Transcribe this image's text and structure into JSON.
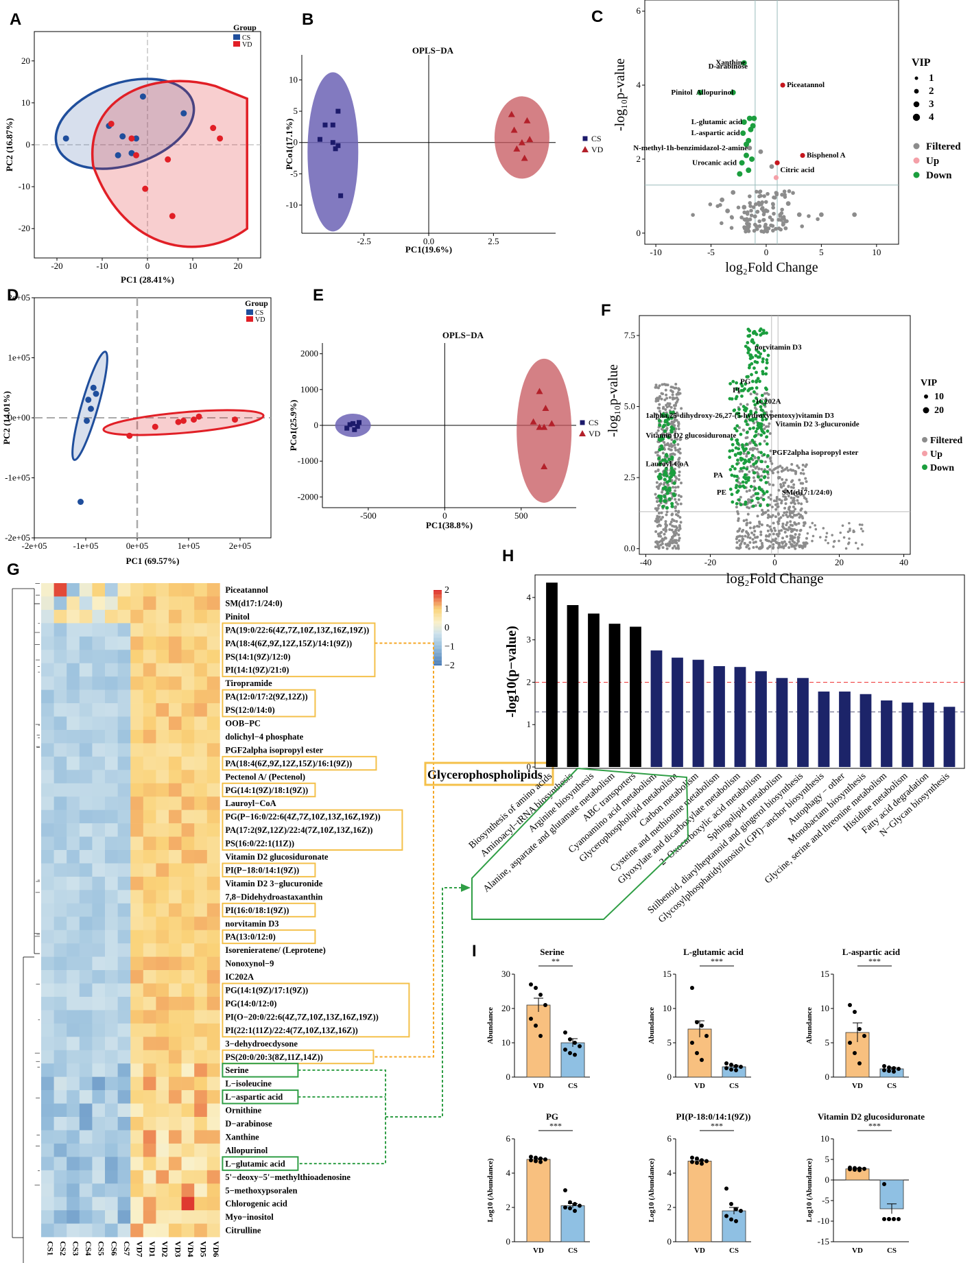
{
  "panels": {
    "A": "A",
    "B": "B",
    "C": "C",
    "D": "D",
    "E": "E",
    "F": "F",
    "G": "G",
    "H": "H",
    "I": "I"
  },
  "colors": {
    "cs": "#1f4e9c",
    "vd": "#e11f26",
    "cs_fill": "rgba(31,78,156,0.18)",
    "vd_fill": "rgba(225,31,38,0.22)",
    "opls_cs": "#6c63b5",
    "opls_vd": "#c5565c",
    "volcano_grey": "#8c8c8c",
    "volcano_green": "#1b9e3e",
    "volcano_up": "#f4a0a8",
    "volcano_red": "#c5161d",
    "bar_black": "#000000",
    "bar_navy": "#1c2469",
    "bar_orange": "#f8c07f",
    "bar_blue": "#8fc0e3",
    "gold_box": "#f4c04a",
    "green_box": "#2f9e45"
  },
  "chart_data": [
    {
      "id": "A",
      "type": "scatter",
      "xlabel": "PC1 (28.41%)",
      "ylabel": "PC2 (16.87%)",
      "xlim": [
        -25,
        25
      ],
      "ylim": [
        -27,
        27
      ],
      "xticks": [
        "-20",
        "-10",
        "0",
        "10",
        "20"
      ],
      "yticks": [
        "-20",
        "-10",
        "0",
        "10",
        "20"
      ],
      "legend": {
        "title": "Group",
        "items": [
          "CS",
          "VD"
        ],
        "placement": "top-right"
      },
      "series": [
        {
          "name": "CS",
          "points": [
            [
              -18,
              1.5
            ],
            [
              -8.5,
              4.5
            ],
            [
              -6.5,
              -2.5
            ],
            [
              -2.5,
              1.5
            ],
            [
              -1,
              11.5
            ],
            [
              -3.5,
              -2
            ],
            [
              -5.5,
              2
            ],
            [
              8,
              7.5
            ]
          ]
        },
        {
          "name": "VD",
          "points": [
            [
              -3.5,
              1.5
            ],
            [
              -8,
              5
            ],
            [
              -2.5,
              -2.5
            ],
            [
              -0.5,
              -10.5
            ],
            [
              4.5,
              -3.5
            ],
            [
              14.5,
              4
            ],
            [
              16,
              1.5
            ],
            [
              5.5,
              -17
            ]
          ]
        }
      ]
    },
    {
      "id": "B",
      "type": "scatter",
      "title": "OPLS−DA",
      "xlabel": "PC1(19.6%)",
      "ylabel": "PCo1(17.1%)",
      "xlim": [
        -4.9,
        4.9
      ],
      "ylim": [
        -14.5,
        14
      ],
      "xticks": [
        "-2.5",
        "0.0",
        "2.5"
      ],
      "yticks": [
        "10",
        "5",
        "0",
        "-5",
        "-10"
      ],
      "legend": {
        "items": [
          "CS",
          "VD"
        ],
        "placement": "right"
      },
      "series": [
        {
          "name": "CS",
          "points": [
            [
              -3.5,
              5
            ],
            [
              -3.7,
              2.8
            ],
            [
              -4,
              2.8
            ],
            [
              -4.2,
              0.5
            ],
            [
              -3.7,
              0
            ],
            [
              -3.5,
              -0.5
            ],
            [
              -3.6,
              -1
            ],
            [
              -3.4,
              -8.5
            ]
          ]
        },
        {
          "name": "VD",
          "points": [
            [
              3.2,
              4.5
            ],
            [
              3.8,
              3.5
            ],
            [
              3.3,
              2
            ],
            [
              3.6,
              0
            ],
            [
              3.9,
              0.5
            ],
            [
              3.4,
              -1
            ],
            [
              3.7,
              -2.5
            ]
          ]
        }
      ]
    },
    {
      "id": "C",
      "type": "scatter",
      "xlabel": "log₂Fold Change",
      "ylabel": "-log₁₀p-value",
      "xlim": [
        -11,
        12
      ],
      "ylim": [
        -0.3,
        6.3
      ],
      "xticks": [
        "-10",
        "-5",
        "0",
        "5",
        "10"
      ],
      "yticks": [
        "0",
        "2",
        "4",
        "6"
      ],
      "legend": {
        "title": "VIP",
        "sizes": [
          "1",
          "2",
          "3",
          "4"
        ],
        "items": [
          "Filtered",
          "Up",
          "Down"
        ],
        "placement": "right"
      },
      "labels": [
        {
          "text": "Xanthine",
          "x": -1.5,
          "y": 4.6,
          "color": "down"
        },
        {
          "text": "D-arabinose",
          "x": -1.3,
          "y": 4.5,
          "color": "down"
        },
        {
          "text": "Pinitol",
          "x": -6.3,
          "y": 3.8,
          "color": "down"
        },
        {
          "text": "Allopurinol",
          "x": -2.6,
          "y": 3.8,
          "color": "down"
        },
        {
          "text": "Piceatannol",
          "x": 1.5,
          "y": 4.0,
          "color": "red"
        },
        {
          "text": "L-glutamic acid",
          "x": -1.8,
          "y": 3.0,
          "color": "down"
        },
        {
          "text": "L-aspartic acid",
          "x": -2.0,
          "y": 2.7,
          "color": "down"
        },
        {
          "text": "N-methyl-1h-benzimidazol-2-amine",
          "x": -1.3,
          "y": 2.3,
          "color": "down"
        },
        {
          "text": "Bisphenol A",
          "x": 3.3,
          "y": 2.1,
          "color": "red"
        },
        {
          "text": "Urocanic acid",
          "x": -2.3,
          "y": 1.9,
          "color": "down"
        },
        {
          "text": "Citric acid",
          "x": 0.9,
          "y": 1.7,
          "color": "red"
        }
      ],
      "hlines": [
        1.3
      ],
      "vlines": [
        -1,
        1
      ]
    },
    {
      "id": "D",
      "type": "scatter",
      "xlabel": "PC1 (69.57%)",
      "ylabel": "PC2 (14.01%)",
      "xlim": [
        -200000,
        260000
      ],
      "ylim": [
        -200000,
        200000
      ],
      "xticks": [
        "-2e+05",
        "-1e+05",
        "0e+05",
        "1e+05",
        "2e+05"
      ],
      "yticks": [
        "2e+05",
        "1e+05",
        "0e+00",
        "-1e+05",
        "-2e+05"
      ],
      "legend": {
        "title": "Group",
        "items": [
          "CS",
          "VD"
        ],
        "placement": "top-right"
      },
      "series": [
        {
          "name": "CS",
          "points": [
            [
              -85000,
              50000
            ],
            [
              -80000,
              40000
            ],
            [
              -95000,
              30000
            ],
            [
              -90000,
              15000
            ],
            [
              -98000,
              -5000
            ],
            [
              -110000,
              -140000
            ]
          ]
        },
        {
          "name": "VD",
          "points": [
            [
              -15000,
              -30000
            ],
            [
              35000,
              -15000
            ],
            [
              80000,
              -7000
            ],
            [
              90000,
              -5000
            ],
            [
              110000,
              -3000
            ],
            [
              120000,
              2000
            ],
            [
              190000,
              -3000
            ]
          ]
        }
      ]
    },
    {
      "id": "E",
      "type": "scatter",
      "title": "OPLS−DA",
      "xlabel": "PC1(38.8%)",
      "ylabel": "PCo1(25.9%)",
      "xlim": [
        -800,
        860
      ],
      "ylim": [
        -2300,
        2300
      ],
      "xticks": [
        "-500",
        "0",
        "500"
      ],
      "yticks": [
        "2000",
        "1000",
        "0",
        "-1000",
        "-2000"
      ],
      "legend": {
        "items": [
          "CS",
          "VD"
        ],
        "placement": "right"
      },
      "series": [
        {
          "name": "CS",
          "points": [
            [
              -600,
              50
            ],
            [
              -560,
              80
            ],
            [
              -640,
              -80
            ],
            [
              -590,
              -120
            ],
            [
              -620,
              20
            ],
            [
              -570,
              -30
            ]
          ]
        },
        {
          "name": "VD",
          "points": [
            [
              620,
              950
            ],
            [
              660,
              480
            ],
            [
              580,
              100
            ],
            [
              650,
              -50
            ],
            [
              700,
              50
            ],
            [
              620,
              -50
            ],
            [
              650,
              -1150
            ]
          ]
        }
      ]
    },
    {
      "id": "F",
      "type": "scatter",
      "xlabel": "log₂Fold Change",
      "ylabel": "-log₁₀p-value",
      "xlim": [
        -42,
        42
      ],
      "ylim": [
        -0.2,
        8.2
      ],
      "xticks": [
        "-40",
        "-20",
        "0",
        "20",
        "40"
      ],
      "yticks": [
        "0.0",
        "2.5",
        "5.0",
        "7.5"
      ],
      "legend": {
        "title": "VIP",
        "sizes": [
          "10",
          "20"
        ],
        "items": [
          "Filtered",
          "Up",
          "Down"
        ],
        "placement": "right"
      },
      "labels": [
        "norvitamin D3",
        "PG",
        "PI",
        "IC202A",
        "1alpha,25-dihydroxy-26,27-(5-hydroxypentoxy)vitamin D3",
        "Vitamin D2 3-glucuronide",
        "Vitamin D2 glucosiduronate",
        "PGF2alpha isopropyl ester",
        "Lauroyl-CoA",
        "PA",
        "PE",
        "SM(d17:1/24:0)"
      ],
      "hlines": [
        1.3
      ],
      "vlines": [
        -1,
        1
      ]
    },
    {
      "id": "G",
      "type": "heatmap",
      "columns": [
        "CS1",
        "CS2",
        "CS3",
        "CS4",
        "CS5",
        "CS6",
        "CS7",
        "VD7",
        "VD1",
        "VD2",
        "VD3",
        "VD4",
        "VD5",
        "VD6"
      ],
      "scale": {
        "max": "2",
        "mid_hi": "1",
        "mid": "0",
        "mid_lo": "−1",
        "min": "−2"
      },
      "rows": [
        "Piceatannol",
        "SM(d17:1/24:0)",
        "Pinitol",
        "PA(19:0/22:6(4Z,7Z,10Z,13Z,16Z,19Z))",
        "PA(18:4(6Z,9Z,12Z,15Z)/14:1(9Z))",
        "PS(14:1(9Z)/12:0)",
        "PI(14:1(9Z)/21:0)",
        "Tiropramide",
        "PA(12:0/17:2(9Z,12Z))",
        "PS(12:0/14:0)",
        "OOB−PC",
        "dolichyl−4 phosphate",
        "PGF2alpha isopropyl ester",
        "PA(18:4(6Z,9Z,12Z,15Z)/16:1(9Z))",
        "Pectenol A/ (Pectenol)",
        "PG(14:1(9Z)/18:1(9Z))",
        "Lauroyl−CoA",
        "PG(P−16:0/22:6(4Z,7Z,10Z,13Z,16Z,19Z))",
        "PA(17:2(9Z,12Z)/22:4(7Z,10Z,13Z,16Z))",
        "PS(16:0/22:1(11Z))",
        "Vitamin D2 glucosiduronate",
        "PI(P−18:0/14:1(9Z))",
        "Vitamin D2 3−glucuronide",
        "7,8−Didehydroastaxanthin",
        "PI(16:0/18:1(9Z))",
        "norvitamin D3",
        "PA(13:0/12:0)",
        "Isorenieratene/ (Leprotene)",
        "Nonoxynol−9",
        "IC202A",
        "PG(14:1(9Z)/17:1(9Z))",
        "PG(14:0/12:0)",
        "PI(O−20:0/22:6(4Z,7Z,10Z,13Z,16Z,19Z))",
        "PI(22:1(11Z)/22:4(7Z,10Z,13Z,16Z))",
        "3−dehydroecdysone",
        "PS(20:0/20:3(8Z,11Z,14Z))",
        "Serine",
        "L−isoleucine",
        "L−aspartic acid",
        "Ornithine",
        "D−arabinose",
        "Xanthine",
        "Allopurinol",
        "L−glutamic acid",
        "5'−deoxy−5'−methylthioadenosine",
        "5−methoxypsoralen",
        "Chlorogenic acid",
        "Myo−inositol",
        "Citrulline"
      ],
      "annotations": {
        "gold": "Glycerophospholipids"
      }
    },
    {
      "id": "H",
      "type": "bar",
      "ylabel": "-log10(p−value)",
      "ylim": [
        0,
        4.5
      ],
      "yticks": [
        "0",
        "1",
        "2",
        "3",
        "4"
      ],
      "hlines": [
        2.0,
        1.3
      ],
      "categories": [
        "Biosynthesis of amino acids",
        "Aminoacyl−tRNA biosynthesis",
        "Arginine biosynthesis",
        "Alanine, aspartate and glutamate metabolism",
        "ABC transporters",
        "Cyanoamino acid metabolism",
        "Glycerophospholipid metabolism",
        "Carbon metabolism",
        "Cysteine and methionine metabolism",
        "Glyoxylate and dicarboxylate metabolism",
        "2−Oxocarboxylic acid metabolism",
        "Sphingolipid metabolism",
        "Stilbenoid, diarylheptanoid and gingerol biosynthesis",
        "Glycosylphosphatidylinositol (GPI)−anchor biosynthesis",
        "Autophagy − other",
        "Monobactam biosynthesis",
        "Glycine, serine and threonine metabolism",
        "Histidine metabolism",
        "Fatty acid degradation",
        "N−Glycan biosynthesis"
      ],
      "values": [
        4.35,
        3.82,
        3.62,
        3.38,
        3.31,
        2.75,
        2.58,
        2.53,
        2.38,
        2.36,
        2.26,
        2.1,
        2.1,
        1.78,
        1.78,
        1.72,
        1.57,
        1.52,
        1.52,
        1.42
      ]
    },
    {
      "id": "I",
      "type": "bar",
      "subplots": [
        {
          "title": "Serine",
          "ylabel": "Abundance",
          "yticks": [
            "0",
            "10",
            "20",
            "30"
          ],
          "ylim": [
            0,
            30
          ],
          "categories": [
            "VD",
            "CS"
          ],
          "values": [
            21,
            10
          ],
          "errors": [
            2,
            1.2
          ],
          "sig": "**",
          "points": [
            [
              27,
              26,
              24,
              21,
              17,
              15,
              12
            ],
            [
              13,
              11,
              10,
              9,
              8,
              7,
              6.5
            ]
          ]
        },
        {
          "title": "L-glutamic acid",
          "ylabel": "Abundance",
          "yticks": [
            "0",
            "5",
            "10",
            "15"
          ],
          "ylim": [
            0,
            15
          ],
          "categories": [
            "VD",
            "CS"
          ],
          "values": [
            7,
            1.5
          ],
          "errors": [
            1.2,
            0.2
          ],
          "sig": "***",
          "points": [
            [
              13,
              8,
              7.5,
              6,
              5,
              3.5,
              2.5
            ],
            [
              2,
              1.8,
              1.6,
              1.5,
              1.3,
              1.1,
              1
            ]
          ]
        },
        {
          "title": "L-aspartic acid",
          "ylabel": "Abundance",
          "yticks": [
            "0",
            "5",
            "10",
            "15"
          ],
          "ylim": [
            0,
            15
          ],
          "categories": [
            "VD",
            "CS"
          ],
          "values": [
            6.5,
            1.2
          ],
          "errors": [
            1.4,
            0.2
          ],
          "sig": "***",
          "points": [
            [
              10.5,
              9.5,
              7,
              6,
              5,
              3.5,
              2
            ],
            [
              1.6,
              1.4,
              1.3,
              1.2,
              1,
              0.9,
              0.8
            ]
          ]
        },
        {
          "title": "PG",
          "ylabel": "Log10 (Abundance)",
          "yticks": [
            "0",
            "2",
            "4",
            "6"
          ],
          "ylim": [
            0,
            6
          ],
          "categories": [
            "VD",
            "CS"
          ],
          "values": [
            4.8,
            2.1
          ],
          "errors": [
            0.05,
            0.12
          ],
          "sig": "***",
          "points": [
            [
              4.95,
              4.9,
              4.85,
              4.8,
              4.75,
              4.7,
              4.65
            ],
            [
              3,
              2.3,
              2.2,
              2.1,
              2,
              1.95,
              1.8
            ]
          ]
        },
        {
          "title": "PI(P-18:0/14:1(9Z))",
          "ylabel": "Log10 (Abundance)",
          "yticks": [
            "0",
            "2",
            "4",
            "6"
          ],
          "ylim": [
            0,
            6
          ],
          "categories": [
            "VD",
            "CS"
          ],
          "values": [
            4.7,
            1.8
          ],
          "errors": [
            0.06,
            0.2
          ],
          "sig": "***",
          "points": [
            [
              4.9,
              4.85,
              4.75,
              4.7,
              4.65,
              4.6,
              4.55
            ],
            [
              3.1,
              2.2,
              1.9,
              1.8,
              1.5,
              1.3,
              1.2
            ]
          ]
        },
        {
          "title": "Vitamin D2 glucosiduronate",
          "ylabel": "Log10 (Abundance)",
          "yticks": [
            "10",
            "5",
            "0",
            "-5",
            "-10",
            "-15"
          ],
          "ylim": [
            -15,
            10
          ],
          "categories": [
            "VD",
            "CS"
          ],
          "values": [
            2.7,
            -7
          ],
          "errors": [
            0.15,
            1.2
          ],
          "sig": "***",
          "points": [
            [
              3,
              2.9,
              2.8,
              2.7,
              2.6,
              2.5,
              2.4
            ],
            [
              -1,
              -9.5,
              -9.5,
              -9.5,
              -9.5,
              -9.5,
              -9.5
            ]
          ]
        }
      ]
    }
  ]
}
